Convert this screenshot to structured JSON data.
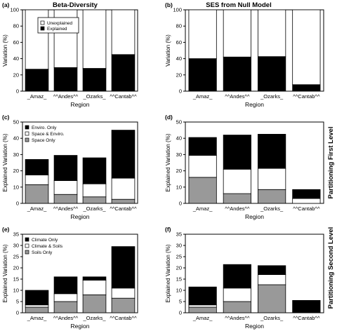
{
  "figure": {
    "col_titles": [
      "Beta-Diversity",
      "SES from Null Model"
    ],
    "row_titles": [
      "Partitioning First Level",
      "Partitioning Second Level"
    ],
    "colors": {
      "black": "#000000",
      "white": "#ffffff",
      "grey": "#999999",
      "axis": "#000000"
    }
  },
  "chart_data": [
    {
      "id": "a",
      "panel_label": "(a)",
      "type": "bar",
      "stacked": true,
      "categories": [
        "_Amaz_",
        "^^Andes^^",
        "_Ozarks_",
        "^^Cantab^^"
      ],
      "xlabel": "Region",
      "ylabel": "Variation (%)",
      "ylim": [
        0,
        100
      ],
      "yticks": [
        0,
        20,
        40,
        60,
        80,
        100
      ],
      "series": [
        {
          "name": "Explained",
          "values": [
            27,
            29,
            28,
            45
          ],
          "color": "#000000"
        },
        {
          "name": "Unexplained",
          "values": [
            73,
            71,
            72,
            55
          ],
          "color": "#ffffff"
        }
      ],
      "legend": {
        "position": "top-left",
        "entries": [
          "Unexplained",
          "Explained"
        ]
      }
    },
    {
      "id": "b",
      "panel_label": "(b)",
      "type": "bar",
      "stacked": true,
      "categories": [
        "_Amaz_",
        "^^Andes^^",
        "_Ozarks_",
        "^^Cantab^^"
      ],
      "xlabel": "Region",
      "ylabel": "Variation (%)",
      "ylim": [
        0,
        100
      ],
      "yticks": [
        0,
        20,
        40,
        60,
        80,
        100
      ],
      "series": [
        {
          "values": [
            40,
            42,
            42.5,
            8
          ],
          "color": "#000000"
        },
        {
          "values": [
            60,
            58,
            57.5,
            92
          ],
          "color": "#ffffff"
        }
      ],
      "legend": null
    },
    {
      "id": "c",
      "panel_label": "(c)",
      "type": "bar",
      "stacked": true,
      "categories": [
        "_Amaz_",
        "^^Andes^^",
        "_Ozarks_",
        "^^Cantab^^"
      ],
      "xlabel": "Region",
      "ylabel": "Explained Variation (%)",
      "ylim": [
        0,
        50
      ],
      "yticks": [
        0,
        10,
        20,
        30,
        40,
        50
      ],
      "series": [
        {
          "name": "Space Only",
          "values": [
            11.5,
            5.5,
            4,
            2.5
          ],
          "color": "#999999"
        },
        {
          "name": "Space & Enviro.",
          "values": [
            6,
            8.5,
            8,
            13
          ],
          "color": "#ffffff"
        },
        {
          "name": "Enviro. Only",
          "values": [
            9.5,
            15.5,
            16,
            29.5
          ],
          "color": "#000000"
        }
      ],
      "legend": {
        "position": "top-left",
        "entries": [
          "Enviro. Only",
          "Space & Enviro.",
          "Space Only"
        ]
      }
    },
    {
      "id": "d",
      "panel_label": "(d)",
      "type": "bar",
      "stacked": true,
      "categories": [
        "_Amaz_",
        "^^Andes^^",
        "_Ozarks_",
        "^^Cantab^^"
      ],
      "xlabel": "Region",
      "ylabel": "Explained Variation (%)",
      "ylim": [
        0,
        50
      ],
      "yticks": [
        0,
        10,
        20,
        30,
        40,
        50
      ],
      "series": [
        {
          "values": [
            16,
            6,
            8.5,
            0
          ],
          "color": "#999999"
        },
        {
          "values": [
            13.5,
            15,
            13,
            3
          ],
          "color": "#ffffff"
        },
        {
          "values": [
            11,
            21,
            21,
            5.5
          ],
          "color": "#000000"
        }
      ],
      "legend": null
    },
    {
      "id": "e",
      "panel_label": "(e)",
      "type": "bar",
      "stacked": true,
      "categories": [
        "_Amaz_",
        "^^Andes^^",
        "_Ozarks_",
        "^^Cantab^^"
      ],
      "xlabel": "Region",
      "ylabel": "Explained Variation (%)",
      "ylim": [
        0,
        35
      ],
      "yticks": [
        0,
        5,
        10,
        15,
        20,
        25,
        30,
        35
      ],
      "series": [
        {
          "name": "Soils Only",
          "values": [
            2.5,
            5,
            8,
            6.5
          ],
          "color": "#999999"
        },
        {
          "name": "Climate & Soils",
          "values": [
            1,
            3.5,
            6.5,
            4.5
          ],
          "color": "#ffffff"
        },
        {
          "name": "Climate Only",
          "values": [
            6.5,
            7.5,
            1.5,
            18.5
          ],
          "color": "#000000"
        }
      ],
      "legend": {
        "position": "top-left",
        "entries": [
          "Climate Only",
          "Climate & Soils",
          "Soils Only"
        ]
      }
    },
    {
      "id": "f",
      "panel_label": "(f)",
      "type": "bar",
      "stacked": true,
      "categories": [
        "_Amaz_",
        "^^Andes^^",
        "_Ozarks_",
        "^^Cantab^^"
      ],
      "xlabel": "Region",
      "ylabel": "Explained Variation (%)",
      "ylim": [
        0,
        35
      ],
      "yticks": [
        0,
        5,
        10,
        15,
        20,
        25,
        30,
        35
      ],
      "series": [
        {
          "values": [
            2.5,
            5,
            12.5,
            0
          ],
          "color": "#999999"
        },
        {
          "values": [
            1,
            6,
            4.5,
            0
          ],
          "color": "#ffffff"
        },
        {
          "values": [
            8,
            10.5,
            4,
            5.5
          ],
          "color": "#000000"
        }
      ],
      "legend": null
    }
  ]
}
